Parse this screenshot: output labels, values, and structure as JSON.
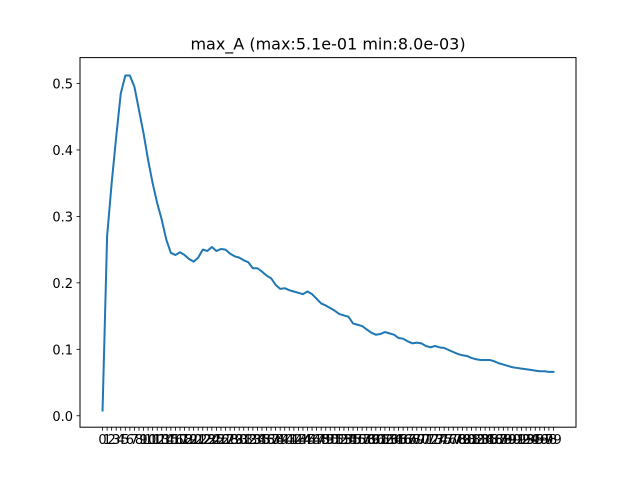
{
  "chart_data": {
    "type": "line",
    "title": "max_A (max:5.1e-01 min:8.0e-03)",
    "xlabel": "",
    "ylabel": "",
    "xlim": [
      -4.95,
      103.95
    ],
    "ylim": [
      -0.0172,
      0.539
    ],
    "yticks": [
      0.0,
      0.1,
      0.2,
      0.3,
      0.4,
      0.5
    ],
    "ytick_labels": [
      "0.0",
      "0.1",
      "0.2",
      "0.3",
      "0.4",
      "0.5"
    ],
    "xticks": [
      0,
      1,
      2,
      3,
      4,
      5,
      6,
      7,
      8,
      9,
      10,
      11,
      12,
      13,
      14,
      15,
      16,
      17,
      18,
      19,
      20,
      21,
      22,
      23,
      24,
      25,
      26,
      27,
      28,
      29,
      30,
      31,
      32,
      33,
      34,
      35,
      36,
      37,
      38,
      39,
      40,
      41,
      42,
      43,
      44,
      45,
      46,
      47,
      48,
      49,
      50,
      51,
      52,
      53,
      54,
      55,
      56,
      57,
      58,
      59,
      60,
      61,
      62,
      63,
      64,
      65,
      66,
      67,
      68,
      69,
      70,
      71,
      72,
      73,
      74,
      75,
      76,
      77,
      78,
      79,
      80,
      81,
      82,
      83,
      84,
      85,
      86,
      87,
      88,
      89,
      90,
      91,
      92,
      93,
      94,
      95,
      96,
      97,
      98,
      99
    ],
    "xtick_labels": [
      "0",
      "1",
      "2",
      "3",
      "4",
      "5",
      "6",
      "7",
      "8",
      "9",
      "10",
      "11",
      "12",
      "13",
      "14",
      "15",
      "16",
      "17",
      "18",
      "19",
      "20",
      "21",
      "22",
      "23",
      "24",
      "25",
      "26",
      "27",
      "28",
      "29",
      "30",
      "31",
      "32",
      "33",
      "34",
      "35",
      "36",
      "37",
      "38",
      "39",
      "40",
      "41",
      "42",
      "43",
      "44",
      "45",
      "46",
      "47",
      "48",
      "49",
      "50",
      "51",
      "52",
      "53",
      "54",
      "55",
      "56",
      "57",
      "58",
      "59",
      "60",
      "61",
      "62",
      "63",
      "64",
      "65",
      "66",
      "67",
      "68",
      "69",
      "70",
      "71",
      "72",
      "73",
      "74",
      "75",
      "76",
      "77",
      "78",
      "79",
      "80",
      "81",
      "82",
      "83",
      "84",
      "85",
      "86",
      "87",
      "88",
      "89",
      "90",
      "91",
      "92",
      "93",
      "94",
      "95",
      "96",
      "97",
      "98",
      "99"
    ],
    "grid": false,
    "legend": "none",
    "series": [
      {
        "color": "#1f77b4",
        "x": [
          0,
          1,
          2,
          3,
          4,
          5,
          6,
          7,
          8,
          9,
          10,
          11,
          12,
          13,
          14,
          15,
          16,
          17,
          18,
          19,
          20,
          21,
          22,
          23,
          24,
          25,
          26,
          27,
          28,
          29,
          30,
          31,
          32,
          33,
          34,
          35,
          36,
          37,
          38,
          39,
          40,
          41,
          42,
          43,
          44,
          45,
          46,
          47,
          48,
          49,
          50,
          51,
          52,
          53,
          54,
          55,
          56,
          57,
          58,
          59,
          60,
          61,
          62,
          63,
          64,
          65,
          66,
          67,
          68,
          69,
          70,
          71,
          72,
          73,
          74,
          75,
          76,
          77,
          78,
          79,
          80,
          81,
          82,
          83,
          84,
          85,
          86,
          87,
          88,
          89,
          90,
          91,
          92,
          93,
          94,
          95,
          96,
          97,
          98,
          99
        ],
        "values": [
          0.008,
          0.27,
          0.35,
          0.42,
          0.485,
          0.512,
          0.512,
          0.495,
          0.46,
          0.425,
          0.385,
          0.35,
          0.32,
          0.295,
          0.265,
          0.245,
          0.242,
          0.246,
          0.242,
          0.236,
          0.232,
          0.238,
          0.25,
          0.248,
          0.254,
          0.248,
          0.251,
          0.25,
          0.244,
          0.24,
          0.238,
          0.234,
          0.231,
          0.222,
          0.222,
          0.217,
          0.211,
          0.207,
          0.197,
          0.191,
          0.192,
          0.189,
          0.187,
          0.185,
          0.183,
          0.187,
          0.183,
          0.176,
          0.169,
          0.166,
          0.162,
          0.158,
          0.153,
          0.151,
          0.149,
          0.139,
          0.137,
          0.135,
          0.13,
          0.125,
          0.122,
          0.123,
          0.126,
          0.124,
          0.122,
          0.117,
          0.116,
          0.112,
          0.109,
          0.11,
          0.109,
          0.105,
          0.103,
          0.105,
          0.103,
          0.102,
          0.099,
          0.096,
          0.093,
          0.091,
          0.09,
          0.087,
          0.085,
          0.084,
          0.084,
          0.084,
          0.082,
          0.079,
          0.077,
          0.075,
          0.073,
          0.072,
          0.071,
          0.07,
          0.069,
          0.068,
          0.067,
          0.067,
          0.066,
          0.066
        ]
      }
    ]
  }
}
